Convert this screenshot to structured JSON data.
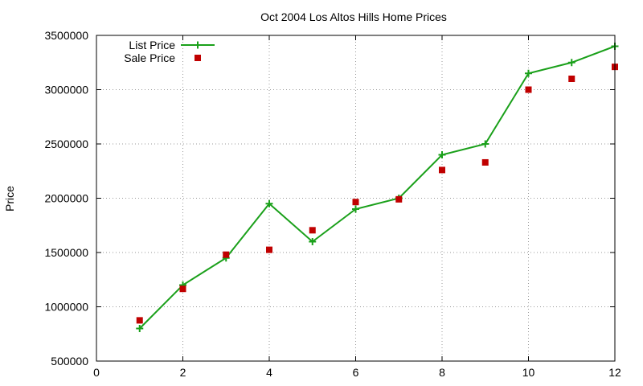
{
  "chart_data": {
    "type": "line",
    "title": "Oct 2004 Los Altos Hills Home Prices",
    "xlabel": "",
    "ylabel": "Price",
    "xlim": [
      0,
      12
    ],
    "ylim": [
      500000,
      3500000
    ],
    "xticks": [
      0,
      2,
      4,
      6,
      8,
      10,
      12
    ],
    "yticks": [
      500000,
      1000000,
      1500000,
      2000000,
      2500000,
      3000000,
      3500000
    ],
    "xtick_labels": [
      "0",
      "2",
      "4",
      "6",
      "8",
      "10",
      "12"
    ],
    "ytick_labels": [
      "500000",
      "1000000",
      "1500000",
      "2000000",
      "2500000",
      "3000000",
      "3500000"
    ],
    "grid": true,
    "legend_position": "top-left",
    "series": [
      {
        "name": "List Price",
        "style": "line+cross",
        "color": "#1aa01a",
        "x": [
          1,
          2,
          3,
          4,
          5,
          6,
          7,
          8,
          9,
          10,
          11,
          12
        ],
        "y": [
          800000,
          1200000,
          1450000,
          1950000,
          1600000,
          1900000,
          2000000,
          2400000,
          2500000,
          3150000,
          3250000,
          3400000
        ]
      },
      {
        "name": "Sale Price",
        "style": "square",
        "color": "#c00000",
        "x": [
          1,
          2,
          3,
          4,
          5,
          6,
          7,
          8,
          9,
          10,
          11,
          12
        ],
        "y": [
          875000,
          1165000,
          1480000,
          1525000,
          1705000,
          1965000,
          1990000,
          2260000,
          2330000,
          3000000,
          3100000,
          3210000
        ]
      }
    ]
  }
}
